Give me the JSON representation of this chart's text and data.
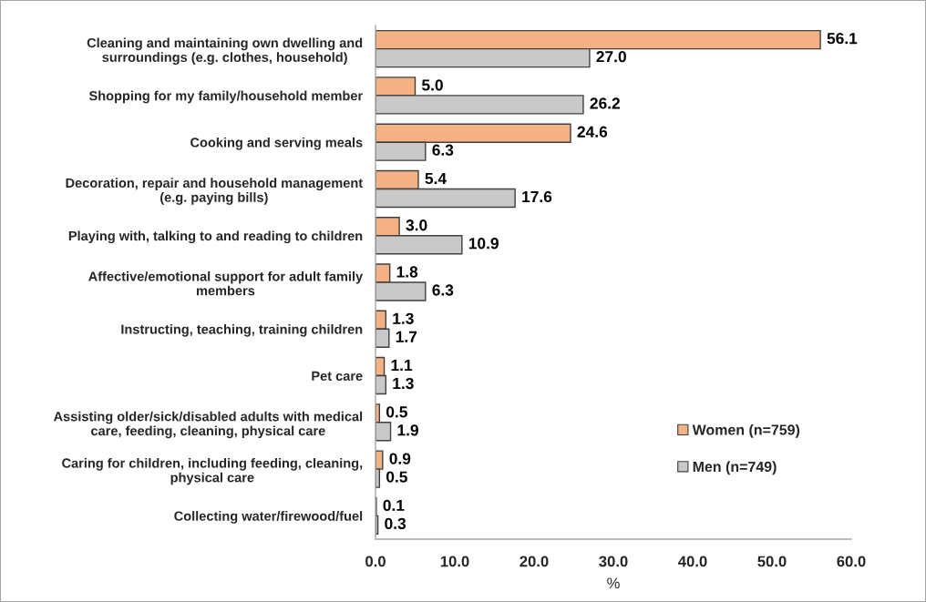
{
  "chart_data": {
    "type": "bar",
    "orientation": "horizontal",
    "xlabel": "%",
    "categories": [
      "Cleaning and maintaining own dwelling and\nsurroundings (e.g. clothes, household)",
      "Shopping for my family/household member",
      "Cooking and serving meals",
      "Decoration, repair and household management\n(e.g. paying bills)",
      "Playing with, talking to and reading to children",
      "Affective/emotional support for adult family\nmembers",
      "Instructing, teaching, training children",
      "Pet care",
      "Assisting older/sick/disabled adults with medical\ncare, feeding, cleaning, physical care",
      "Caring for children, including feeding, cleaning,\nphysical care",
      "Collecting water/firewood/fuel"
    ],
    "series": [
      {
        "name": "Women (n=759)",
        "color": "#f4b183",
        "values": [
          56.1,
          5.0,
          24.6,
          5.4,
          3.0,
          1.8,
          1.3,
          1.1,
          0.5,
          0.9,
          0.1
        ],
        "value_labels": [
          "56.1",
          "5.0",
          "24.6",
          "5.4",
          "3.0",
          "1.8",
          "1.3",
          "1.1",
          "0.5",
          "0.9",
          "0.1"
        ]
      },
      {
        "name": "Men (n=749)",
        "color": "#c9c9c9",
        "values": [
          27.0,
          26.2,
          6.3,
          17.6,
          10.9,
          6.3,
          1.7,
          1.3,
          1.9,
          0.5,
          0.3
        ],
        "value_labels": [
          "27.0",
          "26.2",
          "6.3",
          "17.6",
          "10.9",
          "6.3",
          "1.7",
          "1.3",
          "1.9",
          "0.5",
          "0.3"
        ]
      }
    ],
    "xlim": [
      0,
      60
    ],
    "xticks": [
      {
        "value": 0,
        "label": "0.0"
      },
      {
        "value": 10,
        "label": "10.0"
      },
      {
        "value": 20,
        "label": "20.0"
      },
      {
        "value": 30,
        "label": "30.0"
      },
      {
        "value": 40,
        "label": "40.0"
      },
      {
        "value": 50,
        "label": "50.0"
      },
      {
        "value": 60,
        "label": "60.0"
      }
    ],
    "grid": false,
    "legend": "bottom right"
  }
}
